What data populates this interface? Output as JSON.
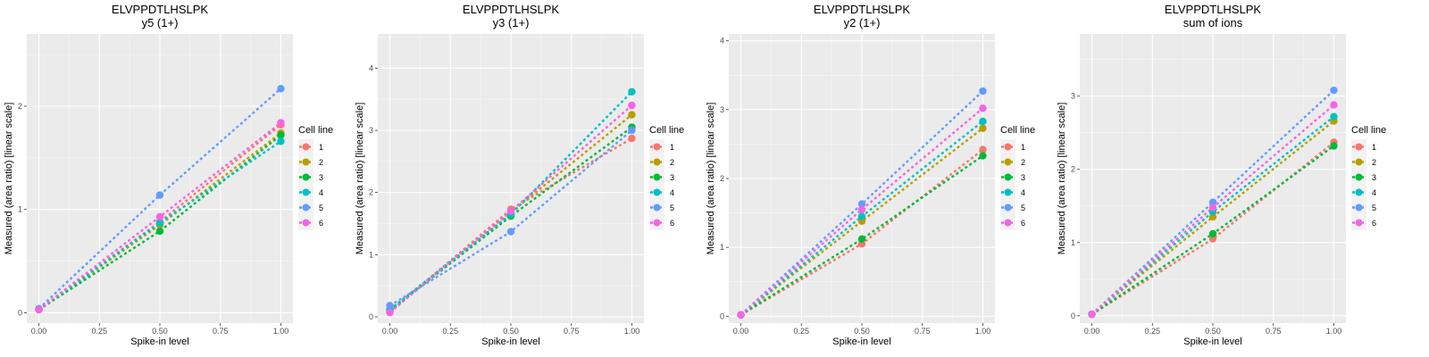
{
  "chart_data": [
    {
      "type": "line",
      "title": "ELVPPDTLHSLPK",
      "subtitle": "y5 (1+)",
      "xlabel": "Spike-in level",
      "ylabel": "Measured (area ratio) [linear scale]",
      "xlim": [
        -0.05,
        1.05
      ],
      "ylim": [
        -0.1,
        2.7
      ],
      "xticks": [
        0,
        0.25,
        0.5,
        0.75,
        1
      ],
      "xtick_labels": [
        "0.00",
        "0.25",
        "0.50",
        "0.75",
        "1.00"
      ],
      "yticks": [
        0,
        1,
        2
      ],
      "ytick_labels": [
        "0",
        "1",
        "2"
      ],
      "x": [
        0,
        0.5,
        1
      ],
      "series": [
        {
          "name": "1",
          "values": [
            0.03,
            0.88,
            1.82
          ]
        },
        {
          "name": "2",
          "values": [
            0.03,
            0.85,
            1.74
          ]
        },
        {
          "name": "3",
          "values": [
            0.03,
            0.79,
            1.72
          ]
        },
        {
          "name": "4",
          "values": [
            0.03,
            0.87,
            1.66
          ]
        },
        {
          "name": "5",
          "values": [
            0.04,
            1.14,
            2.17
          ]
        },
        {
          "name": "6",
          "values": [
            0.03,
            0.93,
            1.84
          ]
        }
      ],
      "legend_title": "Cell line"
    },
    {
      "type": "line",
      "title": "ELVPPDTLHSLPK",
      "subtitle": "y3 (1+)",
      "xlabel": "Spike-in level",
      "ylabel": "Measured (area ratio) [linear scale]",
      "xlim": [
        -0.05,
        1.05
      ],
      "ylim": [
        -0.1,
        4.55
      ],
      "xticks": [
        0,
        0.25,
        0.5,
        0.75,
        1
      ],
      "xtick_labels": [
        "0.00",
        "0.25",
        "0.50",
        "0.75",
        "1.00"
      ],
      "yticks": [
        0,
        1,
        2,
        3,
        4
      ],
      "ytick_labels": [
        "0",
        "1",
        "2",
        "3",
        "4"
      ],
      "x": [
        0,
        0.5,
        1
      ],
      "series": [
        {
          "name": "1",
          "values": [
            0.08,
            1.73,
            2.87
          ]
        },
        {
          "name": "2",
          "values": [
            0.09,
            1.68,
            3.25
          ]
        },
        {
          "name": "3",
          "values": [
            0.1,
            1.62,
            3.05
          ]
        },
        {
          "name": "4",
          "values": [
            0.12,
            1.65,
            3.62
          ]
        },
        {
          "name": "5",
          "values": [
            0.18,
            1.37,
            3.0
          ]
        },
        {
          "name": "6",
          "values": [
            0.07,
            1.7,
            3.4
          ]
        }
      ],
      "legend_title": "Cell line"
    },
    {
      "type": "line",
      "title": "ELVPPDTLHSLPK",
      "subtitle": "y2 (1+)",
      "xlabel": "Spike-in level",
      "ylabel": "Measured (area ratio) [linear scale]",
      "xlim": [
        -0.05,
        1.05
      ],
      "ylim": [
        -0.1,
        4.1
      ],
      "xticks": [
        0,
        0.25,
        0.5,
        0.75,
        1
      ],
      "xtick_labels": [
        "0.00",
        "0.25",
        "0.50",
        "0.75",
        "1.00"
      ],
      "yticks": [
        0,
        1,
        2,
        3,
        4
      ],
      "ytick_labels": [
        "0",
        "1",
        "2",
        "3",
        "4"
      ],
      "x": [
        0,
        0.5,
        1
      ],
      "series": [
        {
          "name": "1",
          "values": [
            0.02,
            1.05,
            2.42
          ]
        },
        {
          "name": "2",
          "values": [
            0.02,
            1.38,
            2.73
          ]
        },
        {
          "name": "3",
          "values": [
            0.02,
            1.12,
            2.33
          ]
        },
        {
          "name": "4",
          "values": [
            0.02,
            1.45,
            2.83
          ]
        },
        {
          "name": "5",
          "values": [
            0.02,
            1.63,
            3.27
          ]
        },
        {
          "name": "6",
          "values": [
            0.02,
            1.55,
            3.02
          ]
        }
      ],
      "legend_title": "Cell line"
    },
    {
      "type": "line",
      "title": "ELVPPDTLHSLPK",
      "subtitle": "sum of ions",
      "xlabel": "Spike-in level",
      "ylabel": "Measured (area ratio) [linear scale]",
      "xlim": [
        -0.05,
        1.05
      ],
      "ylim": [
        -0.1,
        3.85
      ],
      "xticks": [
        0,
        0.25,
        0.5,
        0.75,
        1
      ],
      "xtick_labels": [
        "0.00",
        "0.25",
        "0.50",
        "0.75",
        "1.00"
      ],
      "yticks": [
        0,
        1,
        2,
        3
      ],
      "ytick_labels": [
        "0",
        "1",
        "2",
        "3"
      ],
      "x": [
        0,
        0.5,
        1
      ],
      "series": [
        {
          "name": "1",
          "values": [
            0.02,
            1.05,
            2.37
          ]
        },
        {
          "name": "2",
          "values": [
            0.02,
            1.35,
            2.66
          ]
        },
        {
          "name": "3",
          "values": [
            0.02,
            1.12,
            2.32
          ]
        },
        {
          "name": "4",
          "values": [
            0.02,
            1.42,
            2.72
          ]
        },
        {
          "name": "5",
          "values": [
            0.02,
            1.55,
            3.08
          ]
        },
        {
          "name": "6",
          "values": [
            0.02,
            1.48,
            2.88
          ]
        }
      ],
      "legend_title": "Cell line"
    }
  ],
  "colors": {
    "series": [
      "#F8766D",
      "#B79F00",
      "#00BA38",
      "#00BFC4",
      "#619CFF",
      "#F564E3"
    ],
    "panel_background": "#EBEBEB",
    "grid": "#FFFFFF"
  }
}
